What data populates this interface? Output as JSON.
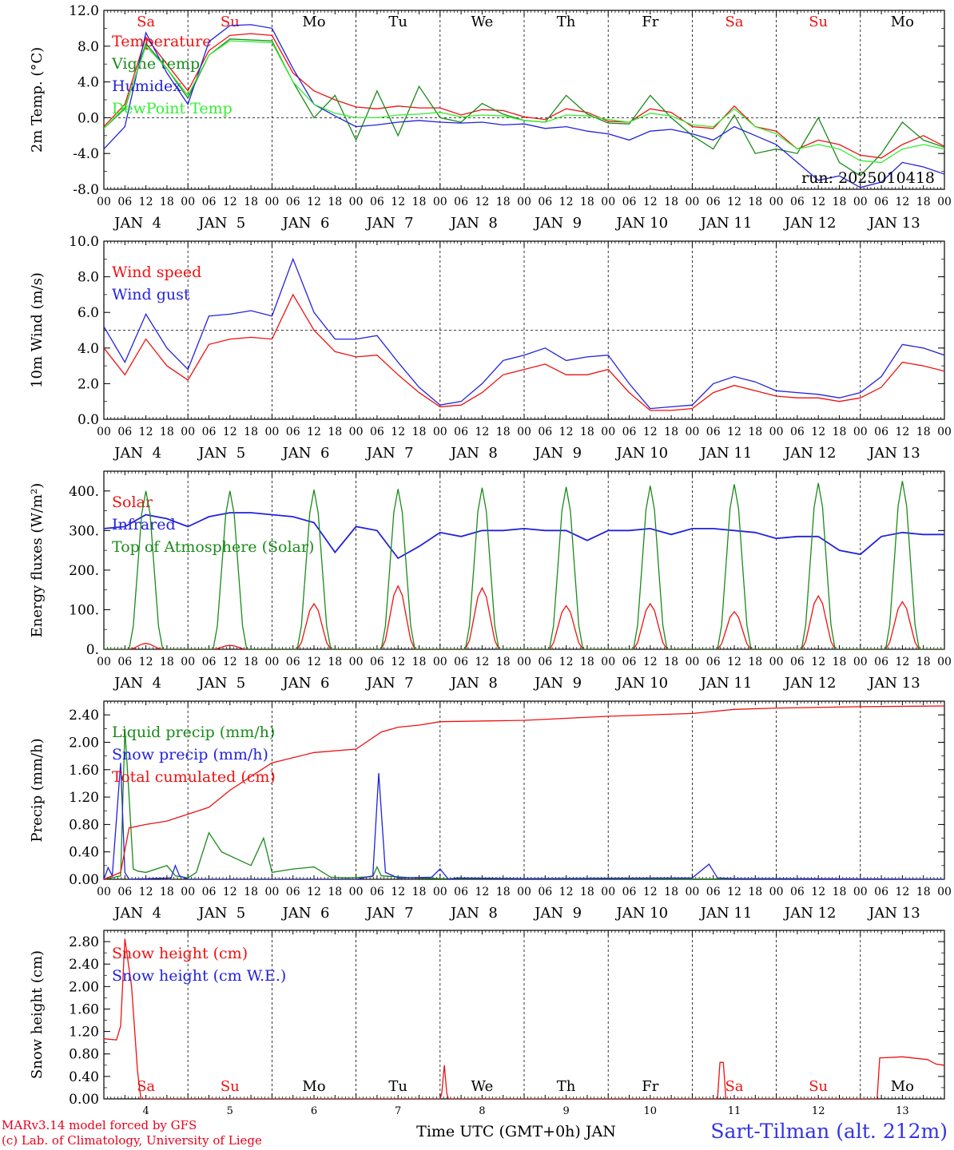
{
  "colors": {
    "red": "#ee1111",
    "darkgreen": "#1a8a1a",
    "blue": "#2222dd",
    "lightgreen": "#33ee33",
    "axis": "#000000",
    "weekend": "#ee1111"
  },
  "footer": {
    "line1": "MARv3.14 model forced by GFS",
    "line2": "(c) Lab. of Climatology, University of Liege"
  },
  "station": "Sart-Tilman (alt. 212m)",
  "xaxis_title": "Time UTC (GMT+0h) JAN",
  "hour_ticks": [
    "00",
    "06",
    "12",
    "18"
  ],
  "final_tick": "00",
  "day_labels": [
    "JAN  4",
    "JAN  5",
    "JAN  6",
    "JAN  7",
    "JAN  8",
    "JAN  9",
    "JAN 10",
    "JAN 11",
    "JAN 12",
    "JAN 13"
  ],
  "weekdays": [
    "Sa",
    "Su",
    "Mo",
    "Tu",
    "We",
    "Th",
    "Fr",
    "Sa",
    "Su",
    "Mo"
  ],
  "weekend_flags": [
    true,
    true,
    false,
    false,
    false,
    false,
    false,
    true,
    true,
    false
  ],
  "bottom_day_numbers": [
    "4",
    "5",
    "6",
    "7",
    "8",
    "9",
    "10",
    "11",
    "12",
    "13"
  ],
  "chart_data": [
    {
      "type": "line",
      "ylabel": "2m Temp. (°C)",
      "ylim": [
        -8,
        12
      ],
      "yticks": [
        "-8.0",
        "-4.0",
        "0.0",
        "4.0",
        "8.0",
        "12.0"
      ],
      "yticks_values": [
        -8,
        -4,
        0,
        4,
        8,
        12
      ],
      "refline": 0,
      "x_days": [
        0,
        0.25,
        0.5,
        0.75,
        1,
        1.25,
        1.5,
        1.75,
        2,
        2.25,
        2.5,
        2.75,
        3,
        3.25,
        3.5,
        3.75,
        4,
        4.25,
        4.5,
        4.75,
        5,
        5.25,
        5.5,
        5.75,
        6,
        6.25,
        6.5,
        6.75,
        7,
        7.25,
        7.5,
        7.75,
        8,
        8.25,
        8.5,
        8.75,
        9,
        9.25,
        9.5,
        9.75,
        10
      ],
      "annotation": "run: 2025010418",
      "series": [
        {
          "name": "Temperature",
          "color": "#ee1111",
          "values": [
            -1.0,
            1.5,
            9.0,
            6.0,
            3.0,
            7.5,
            9.2,
            9.4,
            9.2,
            5.0,
            3.0,
            2.0,
            1.2,
            1.0,
            1.3,
            1.1,
            1.1,
            0.3,
            0.9,
            0.8,
            0.1,
            -0.2,
            1.0,
            0.6,
            -0.4,
            -0.5,
            1.0,
            0.6,
            -1.0,
            -1.2,
            1.3,
            -1.0,
            -1.5,
            -3.5,
            -2.5,
            -3.0,
            -4.2,
            -4.5,
            -3.0,
            -2.0,
            -3.2
          ]
        },
        {
          "name": "Vigne temp",
          "color": "#1a8a1a",
          "values": [
            -1.2,
            1.0,
            8.3,
            5.5,
            2.2,
            7.0,
            8.8,
            8.7,
            8.6,
            4.0,
            0.0,
            2.5,
            -2.5,
            3.0,
            -2.0,
            3.5,
            0.0,
            -0.5,
            1.6,
            0.4,
            -0.3,
            -0.5,
            2.5,
            0.4,
            -0.6,
            -0.7,
            2.5,
            0.0,
            -2.0,
            -3.5,
            0.3,
            -4.0,
            -3.5,
            -4.0,
            0.0,
            -5.0,
            -6.5,
            -4.0,
            -0.5,
            -2.5,
            -3.3
          ]
        },
        {
          "name": "Humidex",
          "color": "#2222dd",
          "values": [
            -3.5,
            -1.0,
            9.5,
            5.0,
            1.5,
            8.5,
            10.3,
            10.4,
            10.0,
            5.5,
            1.5,
            0.2,
            -1.0,
            -0.8,
            -0.5,
            -0.3,
            -0.5,
            -0.6,
            -0.5,
            -0.8,
            -0.7,
            -1.2,
            -1.0,
            -1.5,
            -1.8,
            -2.5,
            -1.5,
            -1.3,
            -1.8,
            -2.5,
            -1.0,
            -2.0,
            -3.0,
            -5.0,
            -7.0,
            -6.5,
            -7.8,
            -7.2,
            -5.0,
            -5.5,
            -6.3
          ]
        },
        {
          "name": "DewPoint Temp",
          "color": "#33ee33",
          "values": [
            -1.2,
            1.2,
            8.0,
            5.5,
            2.5,
            7.0,
            8.6,
            8.5,
            8.4,
            4.0,
            1.5,
            0.5,
            0.0,
            0.0,
            0.3,
            0.4,
            0.6,
            0.1,
            0.3,
            0.2,
            -0.3,
            -0.5,
            0.3,
            0.2,
            -0.2,
            -0.5,
            0.5,
            0.2,
            -0.8,
            -1.0,
            1.0,
            -1.0,
            -1.8,
            -3.5,
            -3.0,
            -3.5,
            -4.8,
            -5.0,
            -3.5,
            -3.0,
            -3.5
          ]
        }
      ]
    },
    {
      "type": "line",
      "ylabel": "10m Wind (m/s)",
      "ylim": [
        0,
        10
      ],
      "yticks": [
        "0.0",
        "2.0",
        "4.0",
        "6.0",
        "8.0",
        "10.0"
      ],
      "yticks_values": [
        0,
        2,
        4,
        6,
        8,
        10
      ],
      "refline": 5,
      "x_days": [
        0,
        0.25,
        0.5,
        0.75,
        1,
        1.25,
        1.5,
        1.75,
        2,
        2.25,
        2.5,
        2.75,
        3,
        3.25,
        3.5,
        3.75,
        4,
        4.25,
        4.5,
        4.75,
        5,
        5.25,
        5.5,
        5.75,
        6,
        6.25,
        6.5,
        6.75,
        7,
        7.25,
        7.5,
        7.75,
        8,
        8.25,
        8.5,
        8.75,
        9,
        9.25,
        9.5,
        9.75,
        10
      ],
      "series": [
        {
          "name": "Wind speed",
          "color": "#ee1111",
          "values": [
            4.0,
            2.5,
            4.5,
            3.0,
            2.2,
            4.2,
            4.5,
            4.6,
            4.5,
            7.0,
            5.0,
            3.8,
            3.5,
            3.6,
            2.5,
            1.5,
            0.7,
            0.8,
            1.5,
            2.5,
            2.8,
            3.1,
            2.5,
            2.5,
            2.8,
            1.5,
            0.5,
            0.5,
            0.6,
            1.5,
            1.9,
            1.6,
            1.3,
            1.2,
            1.2,
            1.0,
            1.2,
            1.8,
            3.2,
            3.0,
            2.7
          ]
        },
        {
          "name": "Wind gust",
          "color": "#2222dd",
          "values": [
            5.2,
            3.2,
            5.9,
            4.0,
            2.8,
            5.8,
            5.9,
            6.1,
            5.8,
            9.0,
            6.0,
            4.5,
            4.5,
            4.7,
            3.2,
            1.8,
            0.8,
            1.0,
            2.0,
            3.3,
            3.6,
            4.0,
            3.3,
            3.5,
            3.6,
            2.0,
            0.6,
            0.7,
            0.8,
            2.0,
            2.4,
            2.1,
            1.6,
            1.5,
            1.4,
            1.2,
            1.5,
            2.4,
            4.2,
            4.0,
            3.6
          ]
        }
      ]
    },
    {
      "type": "line",
      "ylabel": "Energy fluxes (W/m²)",
      "ylim": [
        0,
        450
      ],
      "yticks": [
        "0.",
        "100.",
        "200.",
        "300.",
        "400."
      ],
      "yticks_values": [
        0,
        100,
        200,
        300,
        400
      ],
      "x_days": [
        0,
        0.25,
        0.5,
        0.75,
        1,
        1.25,
        1.5,
        1.75,
        2,
        2.25,
        2.5,
        2.75,
        3,
        3.25,
        3.5,
        3.75,
        4,
        4.25,
        4.5,
        4.75,
        5,
        5.25,
        5.5,
        5.75,
        6,
        6.25,
        6.5,
        6.75,
        7,
        7.25,
        7.5,
        7.75,
        8,
        8.25,
        8.5,
        8.75,
        9,
        9.25,
        9.5,
        9.75,
        10
      ],
      "series": [
        {
          "name": "Solar",
          "color": "#ee1111",
          "peaks": [
            15,
            10,
            115,
            160,
            155,
            110,
            115,
            95,
            135,
            120
          ]
        },
        {
          "name": "Infrared",
          "color": "#2222dd",
          "values": [
            305,
            310,
            340,
            330,
            310,
            335,
            345,
            345,
            340,
            335,
            320,
            245,
            310,
            300,
            230,
            260,
            295,
            285,
            300,
            300,
            305,
            300,
            300,
            275,
            300,
            300,
            305,
            290,
            305,
            305,
            300,
            295,
            280,
            285,
            285,
            250,
            240,
            285,
            295,
            290,
            290
          ]
        },
        {
          "name": "Top of Atmosphere (Solar)",
          "color": "#1a8a1a",
          "peaks": [
            400,
            400,
            403,
            405,
            408,
            410,
            413,
            417,
            420,
            425
          ]
        }
      ]
    },
    {
      "type": "line",
      "ylabel": "Precip (mm/h)",
      "ylim": [
        0,
        2.6
      ],
      "yticks": [
        "0.00",
        "0.40",
        "0.80",
        "1.20",
        "1.60",
        "2.00",
        "2.40"
      ],
      "yticks_values": [
        0,
        0.4,
        0.8,
        1.2,
        1.6,
        2.0,
        2.4
      ],
      "series": [
        {
          "name": "Liquid precip (mm/h)",
          "color": "#1a8a1a",
          "x_days": [
            0,
            0.2,
            0.25,
            0.3,
            0.35,
            0.4,
            0.5,
            0.75,
            0.85,
            1.0,
            1.1,
            1.25,
            1.4,
            1.75,
            1.9,
            2.0,
            2.25,
            2.5,
            2.7,
            2.9,
            3.2,
            3.25,
            3.3,
            3.7,
            4.0,
            10.0
          ],
          "values": [
            0.0,
            0.05,
            2.2,
            1.2,
            0.15,
            0.12,
            0.1,
            0.2,
            0.05,
            0.02,
            0.1,
            0.68,
            0.4,
            0.2,
            0.6,
            0.1,
            0.15,
            0.18,
            0.03,
            0.02,
            0.04,
            0.18,
            0.05,
            0.02,
            0.01,
            0.0
          ]
        },
        {
          "name": "Snow precip (mm/h)",
          "color": "#2222dd",
          "x_days": [
            0,
            0.05,
            0.1,
            0.2,
            0.25,
            0.3,
            0.8,
            0.85,
            0.9,
            1.0,
            3.0,
            3.2,
            3.27,
            3.35,
            3.5,
            3.9,
            4.0,
            4.1,
            4.2,
            5.0,
            7.0,
            7.2,
            7.3,
            7.5,
            8.0,
            10.0
          ],
          "values": [
            0.0,
            0.17,
            0.05,
            1.7,
            0.1,
            0.0,
            0.02,
            0.2,
            0.05,
            0.0,
            0.0,
            0.05,
            1.55,
            0.1,
            0.02,
            0.03,
            0.15,
            0.0,
            0.02,
            0.01,
            0.02,
            0.22,
            0.02,
            0.01,
            0.01,
            0.0
          ]
        },
        {
          "name": "Total cumulated (cm)",
          "color": "#ee1111",
          "x_days": [
            0,
            0.2,
            0.3,
            0.5,
            0.75,
            1.0,
            1.25,
            1.5,
            1.75,
            2.0,
            2.5,
            3.0,
            3.3,
            3.5,
            3.75,
            4.0,
            5.0,
            6.0,
            7.0,
            7.5,
            8.0,
            9.0,
            10.0
          ],
          "values": [
            0.0,
            0.1,
            0.75,
            0.8,
            0.85,
            0.95,
            1.05,
            1.3,
            1.5,
            1.7,
            1.85,
            1.9,
            2.15,
            2.22,
            2.25,
            2.3,
            2.32,
            2.38,
            2.42,
            2.48,
            2.5,
            2.52,
            2.53
          ]
        }
      ]
    },
    {
      "type": "line",
      "ylabel": "Snow height (cm)",
      "ylim": [
        0,
        3.0
      ],
      "yticks": [
        "0.00",
        "0.40",
        "0.80",
        "1.20",
        "1.60",
        "2.00",
        "2.40",
        "2.80"
      ],
      "yticks_values": [
        0,
        0.4,
        0.8,
        1.2,
        1.6,
        2.0,
        2.4,
        2.8
      ],
      "series": [
        {
          "name": "Snow height (cm)",
          "color": "#ee1111",
          "x_days": [
            0,
            0.15,
            0.2,
            0.25,
            0.33,
            0.4,
            0.44,
            1.0,
            4.0,
            4.02,
            4.05,
            4.08,
            4.1,
            7.0,
            7.3,
            7.33,
            7.37,
            7.4,
            9.0,
            9.2,
            9.23,
            9.5,
            9.8,
            9.9,
            10.0
          ],
          "values": [
            1.07,
            1.05,
            1.3,
            2.85,
            2.0,
            0.5,
            0.0,
            0.0,
            0.0,
            0.1,
            0.6,
            0.1,
            0.0,
            0.0,
            0.0,
            0.65,
            0.65,
            0.0,
            0.0,
            0.0,
            0.73,
            0.75,
            0.7,
            0.62,
            0.6
          ]
        },
        {
          "name": "Snow height (cm W.E.)",
          "color": "#2222dd",
          "x_days": [],
          "values": []
        }
      ]
    }
  ]
}
